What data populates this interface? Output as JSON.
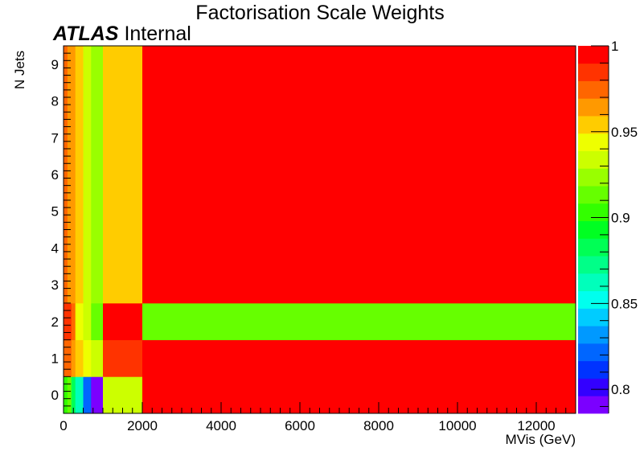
{
  "chart_data": {
    "type": "heatmap",
    "title": "Factorisation Scale Weights",
    "annotation": {
      "bold": "ATLAS",
      "text": "Internal"
    },
    "xlabel": "MVis (GeV)",
    "ylabel": "N Jets",
    "xlim": [
      0,
      13000
    ],
    "ylim": [
      -0.5,
      9.5
    ],
    "x_ticks": [
      0,
      2000,
      4000,
      6000,
      8000,
      10000,
      12000
    ],
    "y_ticks": [
      0,
      1,
      2,
      3,
      4,
      5,
      6,
      7,
      8,
      9
    ],
    "z_range": [
      0.786,
      1.0
    ],
    "z_ticks": [
      0.8,
      0.85,
      0.9,
      0.95,
      1
    ],
    "x_edges": [
      0,
      100,
      200,
      300,
      500,
      700,
      1000,
      2000,
      13000
    ],
    "y_edges": [
      -0.5,
      0.5,
      1.5,
      2.5,
      9.5
    ],
    "z": [
      [
        0.905,
        0.915,
        0.885,
        0.86,
        0.82,
        0.795,
        0.935,
        1.0
      ],
      [
        0.975,
        0.97,
        0.965,
        0.955,
        0.945,
        0.93,
        0.98,
        0.99
      ],
      [
        0.985,
        0.98,
        0.97,
        0.945,
        0.935,
        0.915,
        0.99,
        0.91
      ],
      [
        0.978,
        0.968,
        0.965,
        0.95,
        0.93,
        0.92,
        0.955,
        1.0
      ]
    ],
    "palette": [
      "#7b00ff",
      "#3300ff",
      "#0033ff",
      "#0066ff",
      "#0099ff",
      "#00ccff",
      "#00ffee",
      "#00ffbb",
      "#00ff88",
      "#00ff55",
      "#00ff22",
      "#33ff00",
      "#66ff00",
      "#99ff00",
      "#ccff00",
      "#eeff00",
      "#ffcc00",
      "#ff9900",
      "#ff6600",
      "#ff3300",
      "#ff0000"
    ],
    "grid": false
  }
}
